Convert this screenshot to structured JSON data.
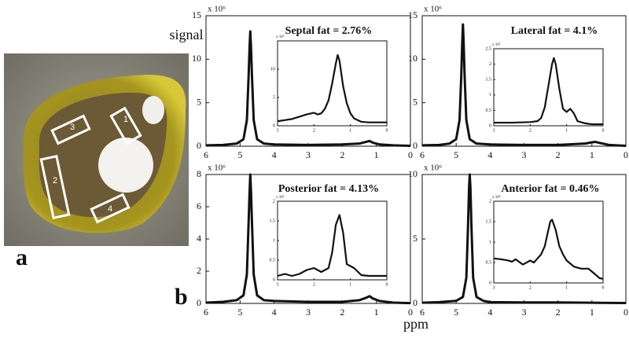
{
  "figure": {
    "panel_a": "a",
    "panel_b": "b",
    "xlabel": "ppm",
    "roi_labels": [
      "1",
      "2",
      "3",
      "4"
    ]
  },
  "chart_data": [
    {
      "type": "line",
      "title": "Septal fat = 2.76%",
      "ylabel": "signal",
      "y_scale": "x 10⁶",
      "color": "#111111",
      "xlim": [
        6,
        0
      ],
      "xticks": [
        6,
        5,
        4,
        3,
        2,
        1,
        0
      ],
      "ylim": [
        0,
        15
      ],
      "yticks": [
        0,
        5,
        10,
        15
      ],
      "x": [
        6,
        5.5,
        5.1,
        4.9,
        4.8,
        4.75,
        4.72,
        4.7,
        4.68,
        4.65,
        4.6,
        4.5,
        4.3,
        4,
        3,
        2,
        1.5,
        1.3,
        1.2,
        1.1,
        0.9,
        0.5,
        0
      ],
      "values": [
        0.1,
        0.15,
        0.3,
        0.8,
        3,
        8,
        11.5,
        13.2,
        11.5,
        8,
        3,
        0.8,
        0.3,
        0.2,
        0.15,
        0.2,
        0.3,
        0.5,
        0.6,
        0.4,
        0.2,
        0.1,
        0.05
      ],
      "inset": {
        "type": "line",
        "y_scale": "x 10⁵",
        "xlim": [
          3,
          0
        ],
        "xticks": [
          3,
          2,
          1,
          0
        ],
        "ylim": [
          0,
          15
        ],
        "yticks": [
          0,
          5,
          10
        ],
        "x": [
          3,
          2.8,
          2.6,
          2.4,
          2.2,
          2.0,
          1.9,
          1.8,
          1.7,
          1.6,
          1.5,
          1.4,
          1.35,
          1.3,
          1.2,
          1.1,
          1.0,
          0.9,
          0.7,
          0.5,
          0.3,
          0
        ],
        "values": [
          0.8,
          1,
          1.2,
          1.6,
          2,
          2.3,
          2,
          2.2,
          3,
          4.5,
          7.5,
          11,
          12.5,
          11.5,
          7,
          4,
          2.2,
          1.3,
          0.7,
          0.6,
          0.6,
          0.6
        ]
      }
    },
    {
      "type": "line",
      "title": "Lateral fat = 4.1%",
      "y_scale": "x 10⁶",
      "color": "#111111",
      "xlim": [
        6,
        0
      ],
      "xticks": [
        6,
        5,
        4,
        3,
        2,
        1,
        0
      ],
      "ylim": [
        0,
        15
      ],
      "yticks": [
        0,
        5,
        10,
        15
      ],
      "x": [
        6,
        5.5,
        5.2,
        5.0,
        4.9,
        4.85,
        4.82,
        4.8,
        4.78,
        4.75,
        4.7,
        4.6,
        4.4,
        4,
        3,
        2,
        1.2,
        1.0,
        0.9,
        0.8,
        0.5,
        0
      ],
      "values": [
        0.1,
        0.15,
        0.3,
        0.8,
        3,
        8,
        12,
        14,
        12,
        8,
        3,
        0.8,
        0.3,
        0.2,
        0.15,
        0.15,
        0.3,
        0.45,
        0.5,
        0.4,
        0.15,
        0.05
      ],
      "inset": {
        "type": "line",
        "y_scale": "x 10⁵",
        "xlim": [
          3,
          0
        ],
        "xticks": [
          3,
          2,
          1,
          0
        ],
        "ylim": [
          0,
          2.5
        ],
        "yticks": [
          0,
          0.5,
          1,
          1.5,
          2,
          2.5
        ],
        "x": [
          3,
          2.5,
          2,
          1.8,
          1.7,
          1.6,
          1.5,
          1.4,
          1.35,
          1.3,
          1.2,
          1.1,
          1.0,
          0.9,
          0.8,
          0.7,
          0.5,
          0.3,
          0
        ],
        "values": [
          0.1,
          0.1,
          0.12,
          0.15,
          0.25,
          0.6,
          1.3,
          2.0,
          2.2,
          2.0,
          1.2,
          0.55,
          0.45,
          0.55,
          0.4,
          0.15,
          0.08,
          0.05,
          0.05
        ]
      }
    },
    {
      "type": "line",
      "title": "Posterior fat = 4.13%",
      "y_scale": "x 10⁶",
      "color": "#111111",
      "xlim": [
        6,
        0
      ],
      "xticks": [
        6,
        5,
        4,
        3,
        2,
        1,
        0
      ],
      "ylim": [
        0,
        8
      ],
      "yticks": [
        0,
        2,
        4,
        6,
        8
      ],
      "x": [
        6,
        5.5,
        5.1,
        4.9,
        4.8,
        4.75,
        4.72,
        4.7,
        4.68,
        4.65,
        4.6,
        4.5,
        4.3,
        4,
        3,
        2,
        1.5,
        1.3,
        1.2,
        1.1,
        0.9,
        0.5,
        0
      ],
      "values": [
        0.05,
        0.1,
        0.2,
        0.5,
        1.8,
        5,
        7,
        8,
        7,
        5,
        1.8,
        0.5,
        0.2,
        0.15,
        0.1,
        0.1,
        0.2,
        0.35,
        0.45,
        0.3,
        0.15,
        0.05,
        0.02
      ],
      "inset": {
        "type": "line",
        "y_scale": "x 10⁵",
        "xlim": [
          3,
          0
        ],
        "xticks": [
          3,
          2,
          1,
          0
        ],
        "ylim": [
          0,
          2
        ],
        "yticks": [
          0,
          0.5,
          1,
          1.5,
          2
        ],
        "x": [
          3,
          2.8,
          2.6,
          2.4,
          2.2,
          2.0,
          1.8,
          1.6,
          1.5,
          1.4,
          1.3,
          1.2,
          1.1,
          1.0,
          0.9,
          0.7,
          0.5,
          0
        ],
        "values": [
          0.1,
          0.15,
          0.1,
          0.15,
          0.25,
          0.3,
          0.2,
          0.3,
          0.7,
          1.4,
          1.65,
          1.2,
          0.4,
          0.35,
          0.3,
          0.12,
          0.1,
          0.1
        ]
      }
    },
    {
      "type": "line",
      "title": "Anterior fat = 0.46%",
      "y_scale": "x 10⁶",
      "color": "#111111",
      "xlim": [
        6,
        0
      ],
      "xticks": [
        6,
        5,
        4,
        3,
        2,
        1,
        0
      ],
      "ylim": [
        0,
        10
      ],
      "yticks": [
        0,
        5,
        10
      ],
      "x": [
        6,
        5.5,
        5,
        4.8,
        4.7,
        4.65,
        4.62,
        4.6,
        4.58,
        4.55,
        4.5,
        4.4,
        4.2,
        4,
        3,
        2,
        1,
        0
      ],
      "values": [
        0.05,
        0.1,
        0.2,
        0.5,
        2,
        6,
        9,
        10,
        9,
        6,
        2,
        0.5,
        0.2,
        0.1,
        0.08,
        0.08,
        0.05,
        0.03
      ],
      "inset": {
        "type": "line",
        "y_scale": "x 10⁴",
        "xlim": [
          3,
          0
        ],
        "xticks": [
          3,
          2,
          1,
          0
        ],
        "ylim": [
          0,
          2
        ],
        "yticks": [
          0,
          0.5,
          1,
          1.5,
          2
        ],
        "x": [
          3,
          2.8,
          2.6,
          2.5,
          2.4,
          2.2,
          2.0,
          1.9,
          1.8,
          1.7,
          1.6,
          1.5,
          1.45,
          1.4,
          1.3,
          1.2,
          1.1,
          1.0,
          0.8,
          0.6,
          0.4,
          0.2,
          0.1,
          0
        ],
        "values": [
          0.6,
          0.58,
          0.55,
          0.52,
          0.58,
          0.45,
          0.55,
          0.5,
          0.6,
          0.7,
          0.9,
          1.3,
          1.5,
          1.55,
          1.3,
          0.9,
          0.7,
          0.55,
          0.4,
          0.35,
          0.35,
          0.2,
          0.12,
          0.1
        ]
      }
    }
  ]
}
